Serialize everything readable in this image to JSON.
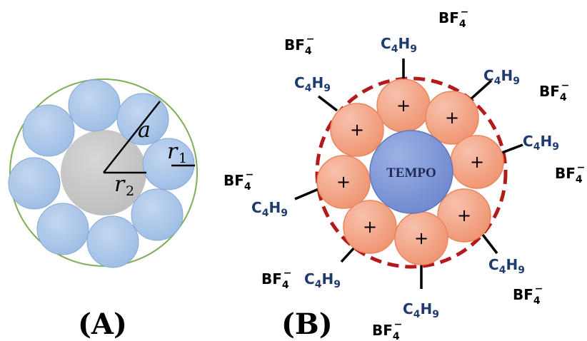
{
  "panel_a": {
    "label": "(A)",
    "symbol_a": "a",
    "symbol_r1": "r",
    "symbol_r1_sub": "1",
    "symbol_r2": "r",
    "symbol_r2_sub": "2"
  },
  "panel_b": {
    "label": "(B)",
    "core_label": "TEMPO",
    "cation_sign": "+",
    "chain_formula": "C",
    "chain_sub1": "4",
    "chain_mid": "H",
    "chain_sub2": "9",
    "anion_formula": "BF",
    "anion_sub": "4",
    "anion_charge": "−"
  },
  "colors": {
    "blue_sphere": "#a9c4e6",
    "blue_edge": "#7ea3d3",
    "gray_core": "#c8c8c8",
    "green_outline": "#7fae57",
    "orange_sphere": "#f4a58a",
    "orange_edge": "#e8875f",
    "tempo_core": "#7f97d6",
    "dashed_ring": "#b31a1a",
    "chain_text": "#1f3a6e"
  }
}
